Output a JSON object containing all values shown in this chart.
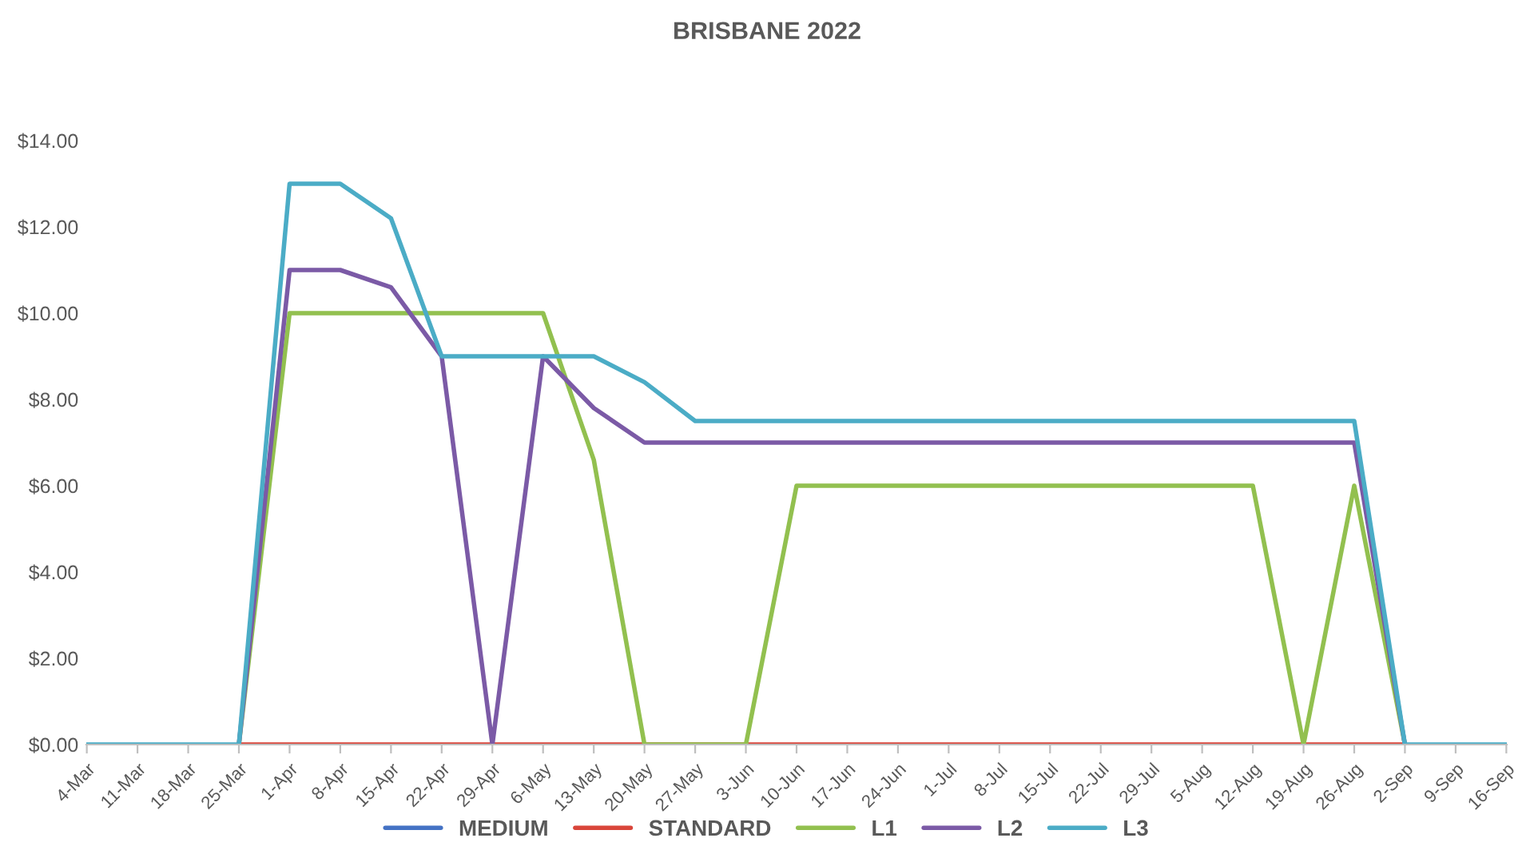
{
  "chart_data": {
    "type": "line",
    "title": "BRISBANE 2022",
    "categories": [
      "4-Mar",
      "11-Mar",
      "18-Mar",
      "25-Mar",
      "1-Apr",
      "8-Apr",
      "15-Apr",
      "22-Apr",
      "29-Apr",
      "6-May",
      "13-May",
      "20-May",
      "27-May",
      "3-Jun",
      "10-Jun",
      "17-Jun",
      "24-Jun",
      "1-Jul",
      "8-Jul",
      "15-Jul",
      "22-Jul",
      "29-Jul",
      "5-Aug",
      "12-Aug",
      "19-Aug",
      "26-Aug",
      "2-Sep",
      "9-Sep",
      "16-Sep"
    ],
    "series": [
      {
        "name": "MEDIUM",
        "color": "#4472c4",
        "values": [
          null,
          null,
          null,
          null,
          null,
          null,
          null,
          null,
          null,
          null,
          null,
          null,
          null,
          null,
          null,
          null,
          null,
          null,
          null,
          null,
          null,
          null,
          null,
          null,
          null,
          null,
          null,
          null,
          null
        ]
      },
      {
        "name": "STANDARD",
        "color": "#d9453a",
        "values": [
          null,
          null,
          null,
          0,
          0,
          0,
          0,
          0,
          0,
          0,
          0,
          0,
          null,
          0,
          0,
          0,
          0,
          0,
          0,
          0,
          0,
          0,
          0,
          0,
          0,
          0,
          0,
          null,
          null
        ]
      },
      {
        "name": "L1",
        "color": "#92c04f",
        "values": [
          null,
          null,
          null,
          0,
          10,
          10,
          10,
          10,
          10,
          10,
          6.6,
          0,
          0,
          0,
          6,
          6,
          6,
          6,
          6,
          6,
          6,
          6,
          6,
          6,
          0,
          6,
          0,
          null,
          null
        ]
      },
      {
        "name": "L2",
        "color": "#7b5aa6",
        "values": [
          null,
          null,
          null,
          0,
          11,
          11,
          10.6,
          9,
          0,
          9,
          7.8,
          7,
          7,
          7,
          7,
          7,
          7,
          7,
          7,
          7,
          7,
          7,
          7,
          7,
          7,
          7,
          0,
          null,
          null
        ]
      },
      {
        "name": "L3",
        "color": "#4bacc6",
        "values": [
          0,
          0,
          0,
          0,
          13,
          13,
          12.2,
          9,
          9,
          9,
          9,
          8.4,
          7.5,
          7.5,
          7.5,
          7.5,
          7.5,
          7.5,
          7.5,
          7.5,
          7.5,
          7.5,
          7.5,
          7.5,
          7.5,
          7.5,
          0,
          0,
          0
        ]
      }
    ],
    "ylim": [
      0,
      14
    ],
    "yticks": [
      {
        "value": 0,
        "label": "$0.00"
      },
      {
        "value": 2,
        "label": "$2.00"
      },
      {
        "value": 4,
        "label": "$4.00"
      },
      {
        "value": 6,
        "label": "$6.00"
      },
      {
        "value": 8,
        "label": "$8.00"
      },
      {
        "value": 10,
        "label": "$10.00"
      },
      {
        "value": 12,
        "label": "$12.00"
      },
      {
        "value": 14,
        "label": "$14.00"
      }
    ],
    "legend": "bottom",
    "marker": "none",
    "line_style": "solid"
  }
}
